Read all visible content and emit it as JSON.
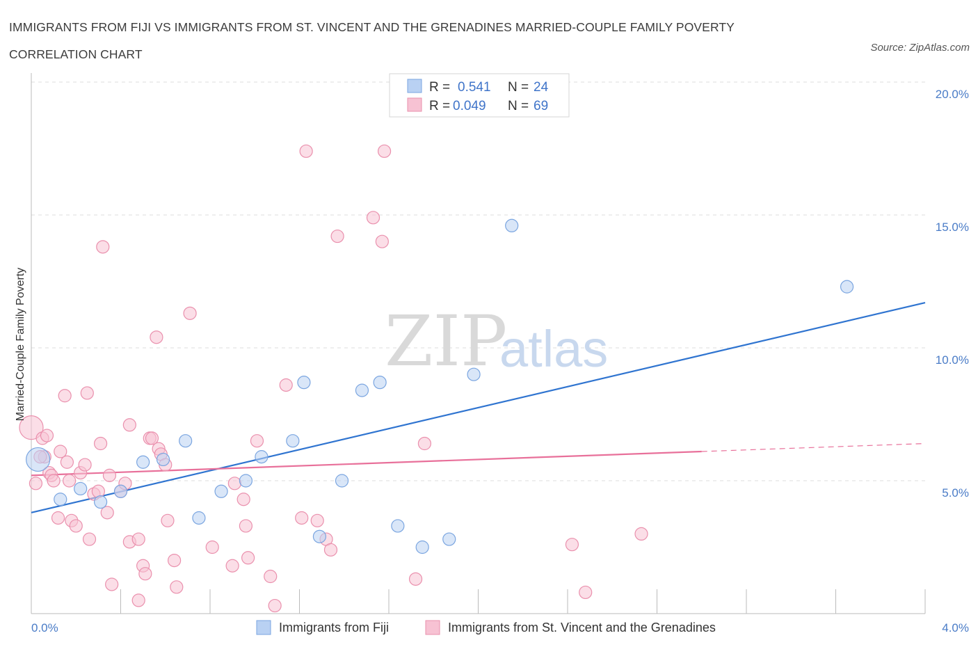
{
  "title": "IMMIGRANTS FROM FIJI VS IMMIGRANTS FROM ST. VINCENT AND THE GRENADINES MARRIED-COUPLE FAMILY POVERTY CORRELATION CHART",
  "source": "Source: ZipAtlas.com",
  "watermark": {
    "zip": "ZIP",
    "atlas": "atlas"
  },
  "colors": {
    "fiji_fill": "#b9d1f3",
    "fiji_stroke": "#7aa5e0",
    "fiji_line": "#2f74d0",
    "svg_fill": "#f7c2d3",
    "svg_stroke": "#ea90ad",
    "svg_line": "#e8709a",
    "grid": "#dddddd",
    "tick_text": "#4a7cc7"
  },
  "legend": {
    "rows": [
      {
        "r_label": "R =",
        "r_value": "0.541",
        "n_label": "N =",
        "n_value": "24"
      },
      {
        "r_label": "R =",
        "r_value": "0.049",
        "n_label": "N =",
        "n_value": "69"
      }
    ]
  },
  "chart_data": {
    "type": "scatter",
    "title": "IMMIGRANTS FROM FIJI VS IMMIGRANTS FROM ST. VINCENT AND THE GRENADINES MARRIED-COUPLE FAMILY POVERTY CORRELATION CHART",
    "xlabel": "",
    "ylabel": "Married-Couple Family Poverty",
    "xlim": [
      0,
      4.0
    ],
    "ylim": [
      0,
      20.0
    ],
    "x_tick_labels": [
      "0.0%",
      "4.0%"
    ],
    "y_ticks": [
      5,
      10,
      15,
      20
    ],
    "y_tick_labels": [
      "5.0%",
      "10.0%",
      "15.0%",
      "20.0%"
    ],
    "grid": true,
    "legend_position": "top-center",
    "series": [
      {
        "name": "Immigrants from Fiji",
        "R": 0.541,
        "N": 24,
        "trend": {
          "x": [
            0.0,
            4.0
          ],
          "y": [
            3.8,
            11.7
          ]
        },
        "points": [
          {
            "x": 0.03,
            "y": 5.8,
            "big": true
          },
          {
            "x": 0.13,
            "y": 4.3
          },
          {
            "x": 0.22,
            "y": 4.7
          },
          {
            "x": 0.31,
            "y": 4.2
          },
          {
            "x": 0.4,
            "y": 4.6
          },
          {
            "x": 0.5,
            "y": 5.7
          },
          {
            "x": 0.59,
            "y": 5.8
          },
          {
            "x": 0.69,
            "y": 6.5
          },
          {
            "x": 0.75,
            "y": 3.6
          },
          {
            "x": 0.85,
            "y": 4.6
          },
          {
            "x": 0.96,
            "y": 5.0
          },
          {
            "x": 1.03,
            "y": 5.9
          },
          {
            "x": 1.17,
            "y": 6.5
          },
          {
            "x": 1.22,
            "y": 8.7
          },
          {
            "x": 1.29,
            "y": 2.9
          },
          {
            "x": 1.39,
            "y": 5.0
          },
          {
            "x": 1.48,
            "y": 8.4
          },
          {
            "x": 1.56,
            "y": 8.7
          },
          {
            "x": 1.64,
            "y": 3.3
          },
          {
            "x": 1.75,
            "y": 2.5
          },
          {
            "x": 1.87,
            "y": 2.8
          },
          {
            "x": 1.98,
            "y": 9.0
          },
          {
            "x": 2.15,
            "y": 14.6
          },
          {
            "x": 3.65,
            "y": 12.3
          }
        ]
      },
      {
        "name": "Immigrants from St. Vincent and the Grenadines",
        "R": 0.049,
        "N": 69,
        "trend": {
          "x": [
            0.0,
            3.0
          ],
          "y": [
            5.2,
            6.1
          ]
        },
        "trend_dashed": {
          "x": [
            3.0,
            4.0
          ],
          "y": [
            6.1,
            6.4
          ]
        },
        "points": [
          {
            "x": 0.0,
            "y": 7.0,
            "big": true
          },
          {
            "x": 0.02,
            "y": 4.9
          },
          {
            "x": 0.05,
            "y": 6.6
          },
          {
            "x": 0.06,
            "y": 5.9
          },
          {
            "x": 0.07,
            "y": 6.7
          },
          {
            "x": 0.08,
            "y": 5.3
          },
          {
            "x": 0.09,
            "y": 5.2
          },
          {
            "x": 0.1,
            "y": 5.0
          },
          {
            "x": 0.12,
            "y": 3.6
          },
          {
            "x": 0.13,
            "y": 6.1
          },
          {
            "x": 0.15,
            "y": 8.2
          },
          {
            "x": 0.16,
            "y": 5.7
          },
          {
            "x": 0.17,
            "y": 5.0
          },
          {
            "x": 0.18,
            "y": 3.5
          },
          {
            "x": 0.2,
            "y": 3.3
          },
          {
            "x": 0.22,
            "y": 5.3
          },
          {
            "x": 0.24,
            "y": 5.6
          },
          {
            "x": 0.25,
            "y": 8.3
          },
          {
            "x": 0.26,
            "y": 2.8
          },
          {
            "x": 0.28,
            "y": 4.5
          },
          {
            "x": 0.3,
            "y": 4.6
          },
          {
            "x": 0.31,
            "y": 6.4
          },
          {
            "x": 0.32,
            "y": 13.8
          },
          {
            "x": 0.34,
            "y": 3.8
          },
          {
            "x": 0.35,
            "y": 5.2
          },
          {
            "x": 0.36,
            "y": 1.1
          },
          {
            "x": 0.4,
            "y": 4.6
          },
          {
            "x": 0.42,
            "y": 4.9
          },
          {
            "x": 0.44,
            "y": 2.7
          },
          {
            "x": 0.44,
            "y": 7.1
          },
          {
            "x": 0.48,
            "y": 0.5
          },
          {
            "x": 0.48,
            "y": 2.8
          },
          {
            "x": 0.5,
            "y": 1.8
          },
          {
            "x": 0.51,
            "y": 1.5
          },
          {
            "x": 0.53,
            "y": 6.6
          },
          {
            "x": 0.54,
            "y": 6.6
          },
          {
            "x": 0.56,
            "y": 10.4
          },
          {
            "x": 0.57,
            "y": 6.2
          },
          {
            "x": 0.58,
            "y": 6.0
          },
          {
            "x": 0.6,
            "y": 5.6
          },
          {
            "x": 0.61,
            "y": 3.5
          },
          {
            "x": 0.64,
            "y": 2.0
          },
          {
            "x": 0.65,
            "y": 1.0
          },
          {
            "x": 0.71,
            "y": 11.3
          },
          {
            "x": 0.81,
            "y": 2.5
          },
          {
            "x": 0.9,
            "y": 1.8
          },
          {
            "x": 0.91,
            "y": 4.9
          },
          {
            "x": 0.95,
            "y": 4.3
          },
          {
            "x": 0.96,
            "y": 3.3
          },
          {
            "x": 0.97,
            "y": 2.1
          },
          {
            "x": 1.01,
            "y": 6.5
          },
          {
            "x": 1.07,
            "y": 1.4
          },
          {
            "x": 1.09,
            "y": 0.3
          },
          {
            "x": 1.14,
            "y": 8.6
          },
          {
            "x": 1.21,
            "y": 3.6
          },
          {
            "x": 1.23,
            "y": 17.4
          },
          {
            "x": 1.28,
            "y": 3.5
          },
          {
            "x": 1.32,
            "y": 2.8
          },
          {
            "x": 1.34,
            "y": 2.4
          },
          {
            "x": 1.37,
            "y": 14.2
          },
          {
            "x": 1.53,
            "y": 14.9
          },
          {
            "x": 1.57,
            "y": 14.0
          },
          {
            "x": 1.58,
            "y": 17.4
          },
          {
            "x": 1.72,
            "y": 1.3
          },
          {
            "x": 1.76,
            "y": 6.4
          },
          {
            "x": 2.42,
            "y": 2.6
          },
          {
            "x": 2.48,
            "y": 0.8
          },
          {
            "x": 2.73,
            "y": 3.0
          },
          {
            "x": 0.04,
            "y": 5.9
          }
        ]
      }
    ]
  }
}
